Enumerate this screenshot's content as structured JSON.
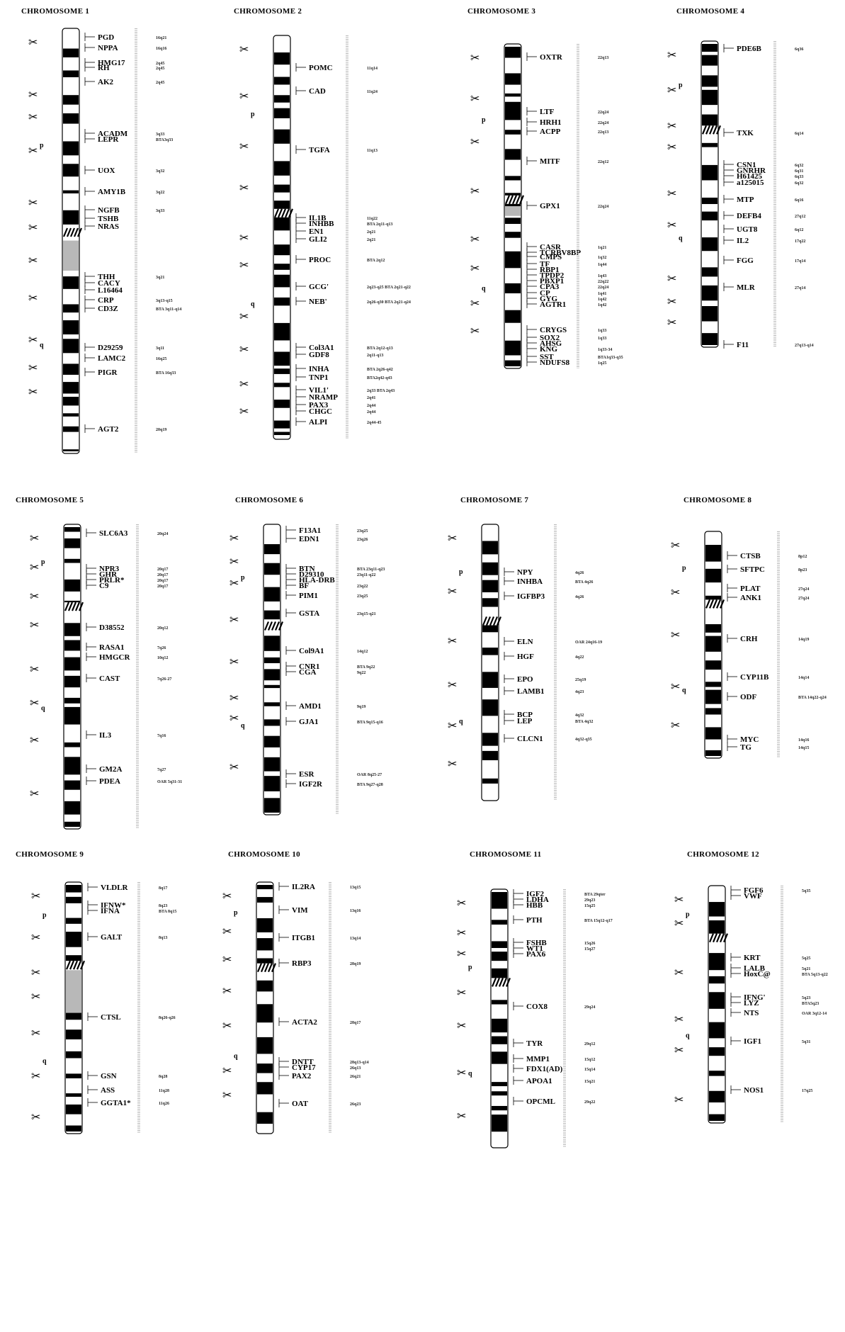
{
  "chromosomes": [
    {
      "title": "CHROMOSOME 1",
      "genes": [
        {
          "name": "PGD",
          "loc": "16q21"
        },
        {
          "name": "NPPA",
          "loc": "16q16"
        },
        {
          "name": "HMG17",
          "loc": "2q45"
        },
        {
          "name": "RH",
          "loc": "2q45"
        },
        {
          "name": "AK2",
          "loc": "2q45"
        },
        {
          "name": "ACADM",
          "loc": "3q33"
        },
        {
          "name": "LEPR",
          "loc": "BTA3q33"
        },
        {
          "name": "UOX",
          "loc": "3q32"
        },
        {
          "name": "AMY1B",
          "loc": "3q22"
        },
        {
          "name": "NGFB",
          "loc": "3q33"
        },
        {
          "name": "TSHB",
          "loc": ""
        },
        {
          "name": "NRAS",
          "loc": ""
        },
        {
          "name": "THH",
          "loc": "3q21"
        },
        {
          "name": "CACY",
          "loc": ""
        },
        {
          "name": "L16464",
          "loc": ""
        },
        {
          "name": "CRP",
          "loc": "3q13-q15"
        },
        {
          "name": "CD3Z",
          "loc": "BTA 3q11-q14"
        },
        {
          "name": "D29259",
          "loc": "3q11"
        },
        {
          "name": "LAMC2",
          "loc": "16q25"
        },
        {
          "name": "PIGR",
          "loc": "BTA 16q33"
        },
        {
          "name": "AGT2",
          "loc": "20q19"
        }
      ]
    },
    {
      "title": "CHROMOSOME 2",
      "genes": [
        {
          "name": "POMC",
          "loc": "11q14"
        },
        {
          "name": "CAD",
          "loc": "11q24"
        },
        {
          "name": "TGFA",
          "loc": "11q13"
        },
        {
          "name": "IL1B",
          "loc": "11q22"
        },
        {
          "name": "INHBB",
          "loc": "BTA 2q11-q13"
        },
        {
          "name": "EN1",
          "loc": "2q21"
        },
        {
          "name": "GLI2",
          "loc": "2q21"
        },
        {
          "name": "PROC",
          "loc": "BTA 2q12"
        },
        {
          "name": "GCG'",
          "loc": "2q23-q25 BTA 2q21-q22"
        },
        {
          "name": "NEB'",
          "loc": "2q26-q30 BTA 2q21-q24"
        },
        {
          "name": "Col3A1",
          "loc": "BTA 2q12-q13"
        },
        {
          "name": "GDF8",
          "loc": "2q11-q13"
        },
        {
          "name": "INHA",
          "loc": "BTA 2q26-q42"
        },
        {
          "name": "TNP1",
          "loc": "BTA2q42-q43"
        },
        {
          "name": "VIL1'",
          "loc": "2q33 BTA 2q43"
        },
        {
          "name": "NRAMP",
          "loc": "2q41"
        },
        {
          "name": "PAX3",
          "loc": "2q44"
        },
        {
          "name": "CHGC",
          "loc": "2q44"
        },
        {
          "name": "ALPI",
          "loc": "2q44-45"
        }
      ]
    },
    {
      "title": "CHROMOSOME 3",
      "genes": [
        {
          "name": "OXTR",
          "loc": "22q13"
        },
        {
          "name": "LTF",
          "loc": "22q24"
        },
        {
          "name": "HRH1",
          "loc": "22q24"
        },
        {
          "name": "ACPP",
          "loc": "22q13"
        },
        {
          "name": "MITF",
          "loc": "22q12"
        },
        {
          "name": "GPX1",
          "loc": "22q24"
        },
        {
          "name": "CASR",
          "loc": "1q21"
        },
        {
          "name": "TCRBV8BP",
          "loc": ""
        },
        {
          "name": "CMPS",
          "loc": "1q32"
        },
        {
          "name": "TF",
          "loc": "1q44"
        },
        {
          "name": "RBP1",
          "loc": ""
        },
        {
          "name": "TPDP2",
          "loc": "1q43"
        },
        {
          "name": "PBXP1",
          "loc": "22q22"
        },
        {
          "name": "CPA3",
          "loc": "22q24"
        },
        {
          "name": "CP",
          "loc": "1q41"
        },
        {
          "name": "GYG",
          "loc": "1q42"
        },
        {
          "name": "AGTR1",
          "loc": "1q42"
        },
        {
          "name": "CRYGS",
          "loc": "1q33"
        },
        {
          "name": "SOX2",
          "loc": "1q33"
        },
        {
          "name": "AHSG",
          "loc": ""
        },
        {
          "name": "KNG",
          "loc": "1q33-34"
        },
        {
          "name": "SST",
          "loc": "BTA1q33-q35"
        },
        {
          "name": "NDUFS8",
          "loc": "1q25"
        }
      ]
    },
    {
      "title": "CHROMOSOME 4",
      "genes": [
        {
          "name": "PDE6B",
          "loc": "6q36"
        },
        {
          "name": "TXK",
          "loc": "6q14"
        },
        {
          "name": "CSN1",
          "loc": "6q32"
        },
        {
          "name": "GNRHR",
          "loc": "6q31"
        },
        {
          "name": "H61425",
          "loc": "6q33"
        },
        {
          "name": "a125015",
          "loc": "6q32"
        },
        {
          "name": "MTP",
          "loc": "6q16"
        },
        {
          "name": "DEFB4",
          "loc": "27q12"
        },
        {
          "name": "UGT8",
          "loc": "6q12"
        },
        {
          "name": "IL2",
          "loc": "17q22"
        },
        {
          "name": "FGG",
          "loc": "17q14"
        },
        {
          "name": "MLR",
          "loc": "27q14"
        },
        {
          "name": "F11",
          "loc": "27q13-q14"
        }
      ]
    },
    {
      "title": "CHROMOSOME 5",
      "genes": [
        {
          "name": "SLC6A3",
          "loc": "20q24"
        },
        {
          "name": "NPR3",
          "loc": "20q17"
        },
        {
          "name": "GHR",
          "loc": "20q17"
        },
        {
          "name": "PRLR*",
          "loc": "20q17"
        },
        {
          "name": "C9",
          "loc": "20q17"
        },
        {
          "name": "D38552",
          "loc": "20q12"
        },
        {
          "name": "RASA1",
          "loc": "7q26"
        },
        {
          "name": "HMGCR",
          "loc": "10q12"
        },
        {
          "name": "CAST",
          "loc": "7q26-27"
        },
        {
          "name": "IL3",
          "loc": "7q16"
        },
        {
          "name": "GM2A",
          "loc": "7q27"
        },
        {
          "name": "PDEA",
          "loc": "OAR 5q31-31"
        }
      ]
    },
    {
      "title": "CHROMOSOME 6",
      "genes": [
        {
          "name": "F13A1",
          "loc": "23q25"
        },
        {
          "name": "EDN1",
          "loc": "23q26"
        },
        {
          "name": "BTN",
          "loc": "BTA 23q11-q23"
        },
        {
          "name": "D29310",
          "loc": "23q11-q22"
        },
        {
          "name": "HLA-DRB",
          "loc": ""
        },
        {
          "name": "BF",
          "loc": "23q22"
        },
        {
          "name": "PIM1",
          "loc": "23q25"
        },
        {
          "name": "GSTA",
          "loc": "23q15-q21"
        },
        {
          "name": "Col9A1",
          "loc": "14q12"
        },
        {
          "name": "CNR1",
          "loc": "BTA 9q22"
        },
        {
          "name": "CGA",
          "loc": "9q22"
        },
        {
          "name": "AMD1",
          "loc": "9q19"
        },
        {
          "name": "GJA1",
          "loc": "BTA 9q15-q16"
        },
        {
          "name": "ESR",
          "loc": "OAR 8q25-27"
        },
        {
          "name": "IGF2R",
          "loc": "BTA 9q27-q28"
        }
      ]
    },
    {
      "title": "CHROMOSOME 7",
      "genes": [
        {
          "name": "NPY",
          "loc": "4q26"
        },
        {
          "name": "INHBA",
          "loc": "BTA 4q26"
        },
        {
          "name": "IGFBP3",
          "loc": "4q26"
        },
        {
          "name": "ELN",
          "loc": "OAR 24q16-19"
        },
        {
          "name": "HGF",
          "loc": "4q22"
        },
        {
          "name": "EPO",
          "loc": "25q19"
        },
        {
          "name": "LAMB1",
          "loc": "4q23"
        },
        {
          "name": "BCP",
          "loc": "4q32"
        },
        {
          "name": "LEP",
          "loc": "BTA 4q32"
        },
        {
          "name": "CLCN1",
          "loc": "4q32-q35"
        }
      ]
    },
    {
      "title": "CHROMOSOME 8",
      "genes": [
        {
          "name": "CTSB",
          "loc": "8p12"
        },
        {
          "name": "SFTPC",
          "loc": "8p23"
        },
        {
          "name": "PLAT",
          "loc": "27q24"
        },
        {
          "name": "ANK1",
          "loc": "27q24"
        },
        {
          "name": "CRH",
          "loc": "14q19"
        },
        {
          "name": "CYP11B",
          "loc": "14q14"
        },
        {
          "name": "ODF",
          "loc": "BTA 14q22-q24"
        },
        {
          "name": "MYC",
          "loc": "14q16"
        },
        {
          "name": "TG",
          "loc": "14q15"
        }
      ]
    },
    {
      "title": "CHROMOSOME 9",
      "genes": [
        {
          "name": "VLDLR",
          "loc": "8q17"
        },
        {
          "name": "IFNW*",
          "loc": "8q23"
        },
        {
          "name": "IFNA",
          "loc": "BTA 8q15"
        },
        {
          "name": "GALT",
          "loc": "8q13"
        },
        {
          "name": "CTSL",
          "loc": "8q26-q26"
        },
        {
          "name": "GSN",
          "loc": "8q28"
        },
        {
          "name": "ASS",
          "loc": "11q28"
        },
        {
          "name": "GGTA1*",
          "loc": "11q26"
        }
      ]
    },
    {
      "title": "CHROMOSOME 10",
      "genes": [
        {
          "name": "IL2RA",
          "loc": "13q15"
        },
        {
          "name": "VIM",
          "loc": "13q16"
        },
        {
          "name": "ITGB1",
          "loc": "13q14"
        },
        {
          "name": "RBP3",
          "loc": "28q19"
        },
        {
          "name": "ACTA2",
          "loc": "28q17"
        },
        {
          "name": "DNTT",
          "loc": "28q13-q14"
        },
        {
          "name": "CYP17",
          "loc": "26q13"
        },
        {
          "name": "PAX2",
          "loc": "26q21"
        },
        {
          "name": "OAT",
          "loc": "26q23"
        }
      ]
    },
    {
      "title": "CHROMOSOME 11",
      "genes": [
        {
          "name": "IGF2",
          "loc": "BTA 29qter"
        },
        {
          "name": "LDHA",
          "loc": "29q23"
        },
        {
          "name": "HBB",
          "loc": "15q25"
        },
        {
          "name": "PTH",
          "loc": "BTA 15q12-q17"
        },
        {
          "name": "FSHB",
          "loc": "15q26"
        },
        {
          "name": "WT1",
          "loc": "15q27"
        },
        {
          "name": "PAX6",
          "loc": ""
        },
        {
          "name": "COX8",
          "loc": "29q24"
        },
        {
          "name": "TYR",
          "loc": "29q12"
        },
        {
          "name": "MMP1",
          "loc": "15q12"
        },
        {
          "name": "FDX1(AD)",
          "loc": "15q14"
        },
        {
          "name": "APOA1",
          "loc": "15q21"
        },
        {
          "name": "OPCML",
          "loc": "29q22"
        }
      ]
    },
    {
      "title": "CHROMOSOME 12",
      "genes": [
        {
          "name": "FGF6",
          "loc": "5q35"
        },
        {
          "name": "VWF",
          "loc": ""
        },
        {
          "name": "KRT",
          "loc": "5q25"
        },
        {
          "name": "LALB",
          "loc": "5q21"
        },
        {
          "name": "HoxC@",
          "loc": "BTA 5q13-q22"
        },
        {
          "name": "IFNG'",
          "loc": "5q23"
        },
        {
          "name": "LYZ",
          "loc": "BTA5q23"
        },
        {
          "name": "NTS",
          "loc": "OAR 3q12-14"
        },
        {
          "name": "IGF1",
          "loc": "5q31"
        },
        {
          "name": "NOS1",
          "loc": "17q25"
        }
      ]
    }
  ],
  "arm_labels": {
    "p": "p",
    "q": "q"
  },
  "scissors_glyph": "✂",
  "colors": {
    "ink": "#000000",
    "paper": "#ffffff",
    "stipple": "#b8b8b8"
  }
}
